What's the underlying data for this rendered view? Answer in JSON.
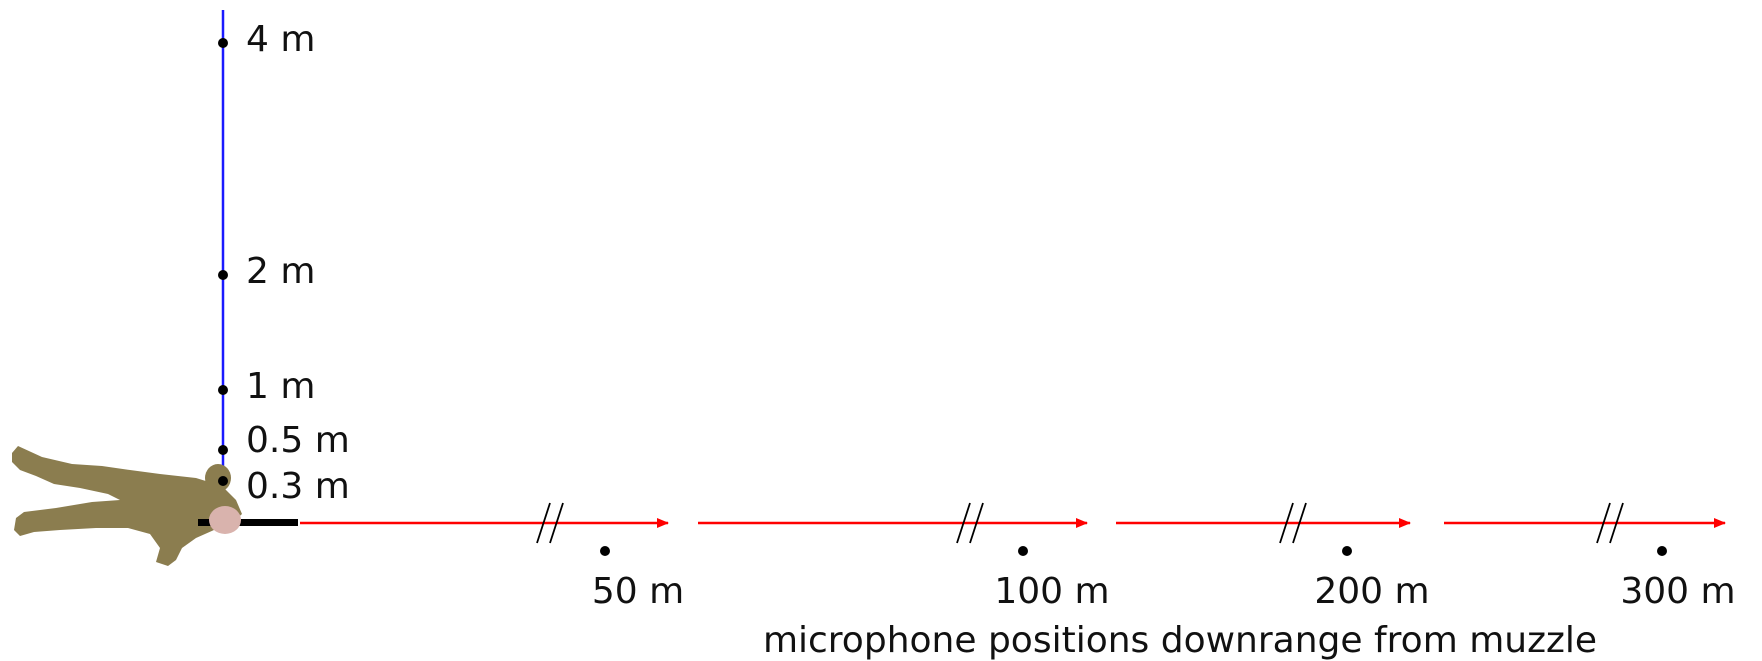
{
  "colors": {
    "vertical_line": "#1a1aff",
    "trajectory": "#ff0000",
    "figure": "#8b7d4f",
    "hand": "#d9b3ad",
    "rifle": "#000000",
    "mic": "#000000"
  },
  "vertical_mics": [
    {
      "label": "4 m",
      "height_m": 4
    },
    {
      "label": "2 m",
      "height_m": 2
    },
    {
      "label": "1 m",
      "height_m": 1
    },
    {
      "label": "0.5 m",
      "height_m": 0.5
    },
    {
      "label": "0.3 m",
      "height_m": 0.3
    }
  ],
  "downrange_mics": [
    {
      "label": "50 m",
      "distance_m": 50
    },
    {
      "label": "100 m",
      "distance_m": 100
    },
    {
      "label": "200 m",
      "distance_m": 200
    },
    {
      "label": "300 m",
      "distance_m": 300
    }
  ],
  "caption": "microphone positions downrange from muzzle"
}
